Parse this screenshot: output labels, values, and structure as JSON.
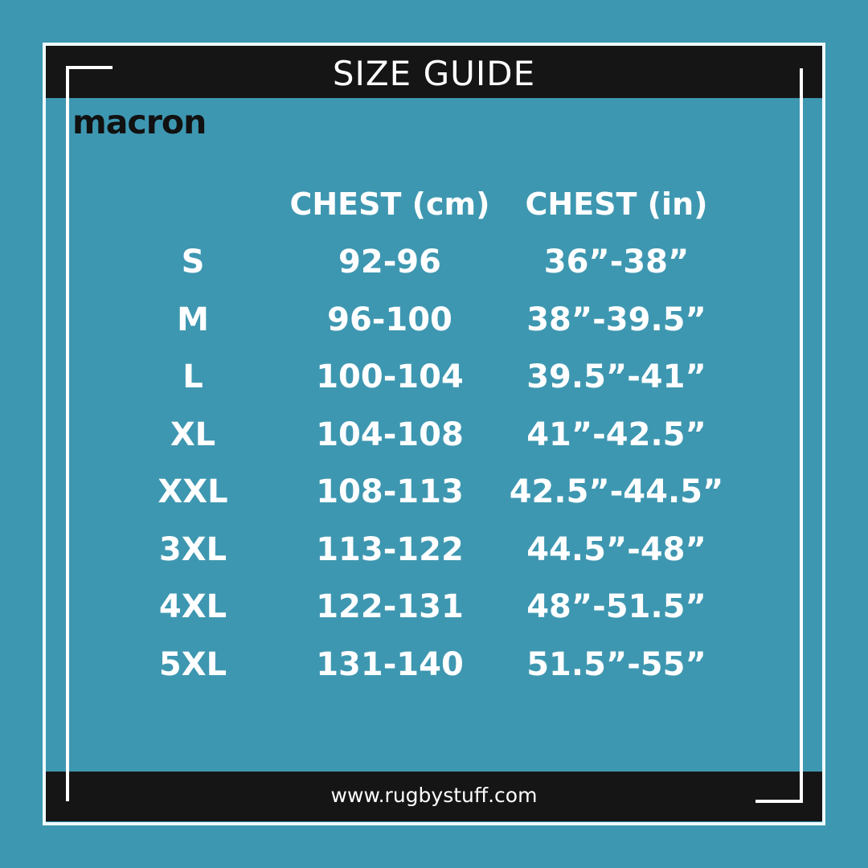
{
  "header": {
    "title": "SIZE GUIDE"
  },
  "brand": {
    "logo": "macron"
  },
  "table": {
    "columns": [
      "",
      "CHEST (cm)",
      "CHEST (in)"
    ],
    "rows": [
      [
        "S",
        "92-96",
        "36”-38”"
      ],
      [
        "M",
        "96-100",
        "38”-39.5”"
      ],
      [
        "L",
        "100-104",
        "39.5”-41”"
      ],
      [
        "XL",
        "104-108",
        "41”-42.5”"
      ],
      [
        "XXL",
        "108-113",
        "42.5”-44.5”"
      ],
      [
        "3XL",
        "113-122",
        "44.5”-48”"
      ],
      [
        "4XL",
        "122-131",
        "48”-51.5”"
      ],
      [
        "5XL",
        "131-140",
        "51.5”-55”"
      ]
    ]
  },
  "footer": {
    "website": "www.rugbystuff.com"
  },
  "colors": {
    "background": "#3e97b1",
    "bar": "#151515",
    "text": "#ffffff"
  }
}
